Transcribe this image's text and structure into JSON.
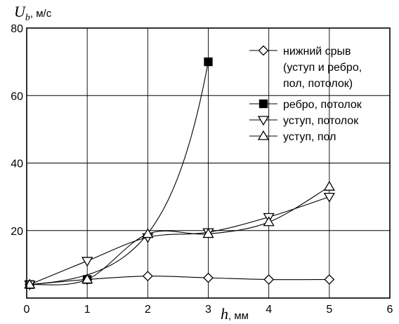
{
  "chart_data": {
    "type": "line",
    "ylabel_var": "U",
    "ylabel_sub": "b",
    "ylabel_unit": ", м/с",
    "xlabel_var": "h",
    "xlabel_unit": ", мм",
    "xlim": [
      0,
      6
    ],
    "ylim": [
      0,
      80
    ],
    "x_ticks": [
      0,
      1,
      2,
      3,
      4,
      5,
      6
    ],
    "y_ticks": [
      20,
      40,
      60,
      80
    ],
    "grid": true,
    "legend_position": "top-right",
    "series": [
      {
        "name": "нижний срыв (уступ и ребро, пол, потолок)",
        "label_lines": [
          "нижний срыв",
          "(уступ и ребро,",
          "пол, потолок)"
        ],
        "marker": "diamond-open",
        "x": [
          0.05,
          1,
          2,
          3,
          4,
          5
        ],
        "y": [
          4,
          5.5,
          6.5,
          6,
          5.5,
          5.5
        ]
      },
      {
        "name": "ребро, потолок",
        "label_lines": [
          "ребро, потолок"
        ],
        "marker": "square-filled",
        "x": [
          0.05,
          1,
          3
        ],
        "y": [
          4,
          5.5,
          70
        ]
      },
      {
        "name": "уступ, потолок",
        "label_lines": [
          "уступ, потолок"
        ],
        "marker": "triangle-down-open",
        "x": [
          0.05,
          1,
          2,
          3,
          4,
          5
        ],
        "y": [
          4,
          11,
          18,
          19.5,
          24,
          30
        ]
      },
      {
        "name": "уступ, пол",
        "label_lines": [
          "уступ, пол"
        ],
        "marker": "triangle-up-open",
        "x": [
          0.05,
          1,
          2,
          3,
          4,
          5
        ],
        "y": [
          4,
          5.5,
          19,
          19,
          22.5,
          33
        ]
      }
    ]
  }
}
